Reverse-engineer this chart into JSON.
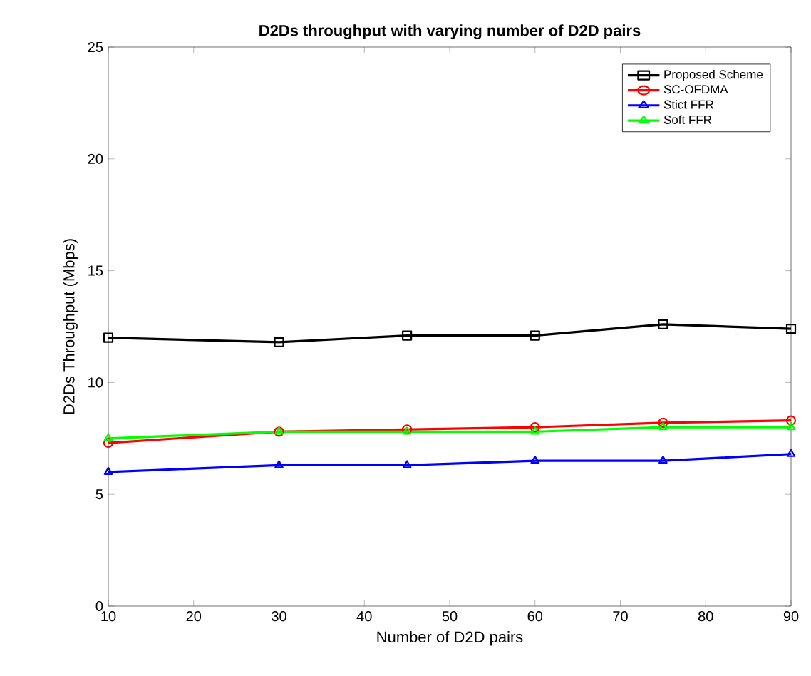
{
  "chart_data": {
    "type": "line",
    "title": "**D2Ds throughput with varying number of D2D pairs**",
    "xlabel": "Number of D2D pairs",
    "ylabel": "D2Ds Throughput (Mbps)",
    "x": [
      10,
      30,
      45,
      60,
      75,
      90
    ],
    "series": [
      {
        "name": "Proposed Scheme",
        "color": "#000000",
        "marker": "square",
        "values": [
          12.0,
          11.8,
          12.1,
          12.1,
          12.6,
          12.4
        ]
      },
      {
        "name": "SC-OFDMA",
        "color": "#ff0000",
        "marker": "circle",
        "values": [
          7.3,
          7.8,
          7.9,
          8.0,
          8.2,
          8.3
        ]
      },
      {
        "name": "Stict FFR",
        "color": "#0000ff",
        "marker": "triangle",
        "values": [
          6.0,
          6.3,
          6.3,
          6.5,
          6.5,
          6.8
        ]
      },
      {
        "name": "Soft FFR",
        "color": "#00ff00",
        "marker": "triangle",
        "values": [
          7.5,
          7.8,
          7.8,
          7.8,
          8.0,
          8.0
        ]
      }
    ],
    "xlim": [
      10,
      90
    ],
    "xticks": [
      10,
      20,
      30,
      40,
      50,
      60,
      70,
      80,
      90
    ],
    "ylim": [
      0,
      25
    ],
    "yticks": [
      0,
      5,
      10,
      15,
      20,
      25
    ],
    "grid": false,
    "legend": "top right",
    "line_style": "solid"
  }
}
